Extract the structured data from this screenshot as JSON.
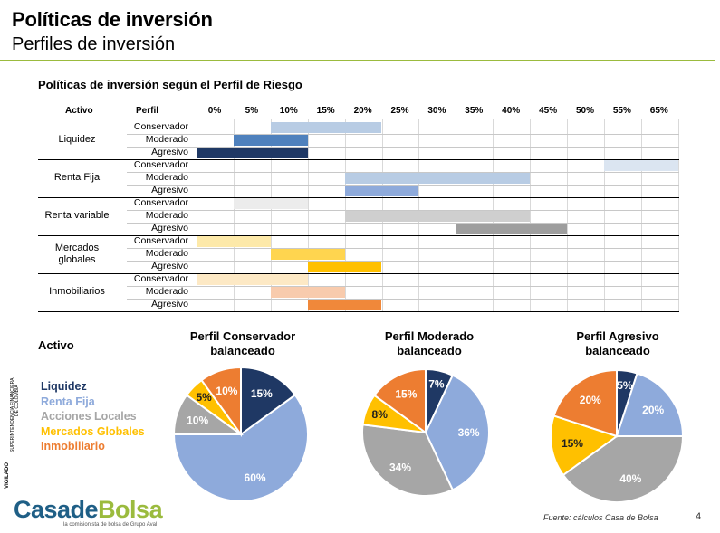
{
  "header": {
    "title": "Políticas de inversión",
    "subtitle": "Perfiles de inversión"
  },
  "chart_data": [
    {
      "type": "table",
      "title": "Políticas de inversión según el Perfil de Riesgo",
      "column_headers": {
        "activo": "Activo",
        "perfil": "Perfil"
      },
      "percent_columns": [
        "0%",
        "5%",
        "10%",
        "15%",
        "20%",
        "25%",
        "30%",
        "35%",
        "40%",
        "45%",
        "50%",
        "55%",
        "65%"
      ],
      "assets": [
        {
          "name": "Liquidez",
          "color_light": "#b8cce4",
          "color_mid": "#4f81bd",
          "color_dark": "#1f3864",
          "ranges": [
            {
              "profile": "Conservador",
              "from": "10%",
              "to": "20%",
              "shade": "light"
            },
            {
              "profile": "Moderado",
              "from": "5%",
              "to": "10%",
              "shade": "mid"
            },
            {
              "profile": "Agresivo",
              "from": "0%",
              "to": "10%",
              "shade": "dark"
            }
          ]
        },
        {
          "name": "Renta Fija",
          "color_light": "#dbe5f1",
          "color_mid": "#b8cce4",
          "color_dark": "#8eaadb",
          "ranges": [
            {
              "profile": "Conservador",
              "from": "55%",
              "to": "65%",
              "shade": "light"
            },
            {
              "profile": "Moderado",
              "from": "20%",
              "to": "40%",
              "shade": "mid"
            },
            {
              "profile": "Agresivo",
              "from": "20%",
              "to": "25%",
              "shade": "dark"
            }
          ]
        },
        {
          "name": "Renta variable",
          "color_light": "#ececec",
          "color_mid": "#cfcfcf",
          "color_dark": "#9e9e9e",
          "ranges": [
            {
              "profile": "Conservador",
              "from": "5%",
              "to": "10%",
              "shade": "light"
            },
            {
              "profile": "Moderado",
              "from": "20%",
              "to": "40%",
              "shade": "mid"
            },
            {
              "profile": "Agresivo",
              "from": "35%",
              "to": "45%",
              "shade": "dark"
            }
          ]
        },
        {
          "name": "Mercados globales",
          "color_light": "#fde9a9",
          "color_mid": "#ffd54f",
          "color_dark": "#ffc000",
          "ranges": [
            {
              "profile": "Conservador",
              "from": "0%",
              "to": "5%",
              "shade": "light"
            },
            {
              "profile": "Moderado",
              "from": "10%",
              "to": "15%",
              "shade": "mid"
            },
            {
              "profile": "Agresivo",
              "from": "15%",
              "to": "20%",
              "shade": "dark"
            }
          ]
        },
        {
          "name": "Inmobiliarios",
          "color_light": "#fde9c5",
          "color_mid": "#f8cbad",
          "color_dark": "#f0883a",
          "ranges": [
            {
              "profile": "Conservador",
              "from": "0%",
              "to": "10%",
              "shade": "light"
            },
            {
              "profile": "Moderado",
              "from": "10%",
              "to": "15%",
              "shade": "mid"
            },
            {
              "profile": "Agresivo",
              "from": "15%",
              "to": "20%",
              "shade": "dark"
            }
          ]
        }
      ]
    },
    {
      "type": "pie",
      "title": "Perfil Conservador balanceado",
      "title_lines": [
        "Perfil Conservador",
        "balanceado"
      ],
      "categories": [
        "Liquidez",
        "Renta Fija",
        "Acciones Locales",
        "Mercados Globales",
        "Inmobiliario"
      ],
      "values": [
        15,
        60,
        10,
        5,
        10
      ]
    },
    {
      "type": "pie",
      "title": "Perfil Moderado balanceado",
      "title_lines": [
        "Perfil Moderado",
        "balanceado"
      ],
      "categories": [
        "Liquidez",
        "Renta Fija",
        "Acciones Locales",
        "Mercados Globales",
        "Inmobiliario"
      ],
      "values": [
        7,
        36,
        34,
        8,
        15
      ]
    },
    {
      "type": "pie",
      "title": "Perfil Agresivo balanceado",
      "title_lines": [
        "Perfil Agresivo",
        "balanceado"
      ],
      "categories": [
        "Liquidez",
        "Renta Fija",
        "Acciones Locales",
        "Mercados Globales",
        "Inmobiliario"
      ],
      "values": [
        5,
        20,
        40,
        15,
        20
      ]
    }
  ],
  "legend": {
    "title": "Activo",
    "items": [
      {
        "label": "Liquidez",
        "color": "#1f3864"
      },
      {
        "label": "Renta Fija",
        "color": "#8eaadb"
      },
      {
        "label": "Acciones Locales",
        "color": "#a6a6a6"
      },
      {
        "label": "Mercados Globales",
        "color": "#ffc000"
      },
      {
        "label": "Inmobiliario",
        "color": "#ed7d31"
      }
    ]
  },
  "pie_colors": [
    "#1f3864",
    "#8eaadb",
    "#a6a6a6",
    "#ffc000",
    "#ed7d31"
  ],
  "side_text": [
    "VIGILADO",
    "SUPERINTENDENCIA FINANCIERA",
    "DE COLOMBIA"
  ],
  "footer": {
    "logo_part1": "Casade",
    "logo_part2": "Bolsa",
    "tagline": "la comisionista de bolsa de Grupo Aval",
    "source": "Fuente: cálculos Casa de Bolsa",
    "page": "4"
  }
}
